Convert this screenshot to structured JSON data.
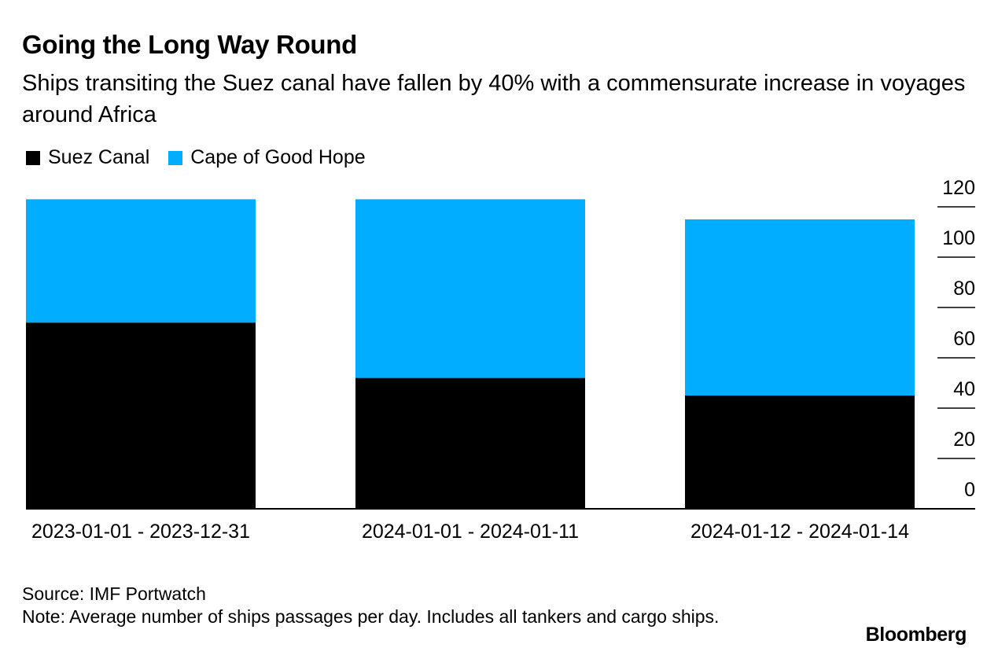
{
  "title": "Going the Long Way Round",
  "subtitle": "Ships transiting the Suez canal have fallen by 40% with a commensurate increase in voyages around Africa",
  "legend": {
    "suez": "Suez Canal",
    "cape": "Cape of Good Hope"
  },
  "colors": {
    "suez": "#000000",
    "cape": "#00adff",
    "axis": "#000000"
  },
  "source": "Source: IMF Portwatch",
  "note": "Note: Average number of ships passages per day. Includes all tankers and cargo ships.",
  "logo": "Bloomberg",
  "chart_data": {
    "type": "bar",
    "stacked": true,
    "title": "Going the Long Way Round",
    "categories": [
      "2023-01-01 - 2023-12-31",
      "2024-01-01 - 2024-01-11",
      "2024-01-12 - 2024-01-14"
    ],
    "series": [
      {
        "name": "Suez Canal",
        "values": [
          74,
          52,
          45
        ]
      },
      {
        "name": "Cape of Good Hope",
        "values": [
          49,
          71,
          70
        ]
      }
    ],
    "yticks": [
      0,
      20,
      40,
      60,
      80,
      100,
      120
    ],
    "ylim": [
      0,
      120
    ],
    "xlabel": "",
    "ylabel": "",
    "legend_position": "top-left",
    "y_axis_side": "right"
  }
}
